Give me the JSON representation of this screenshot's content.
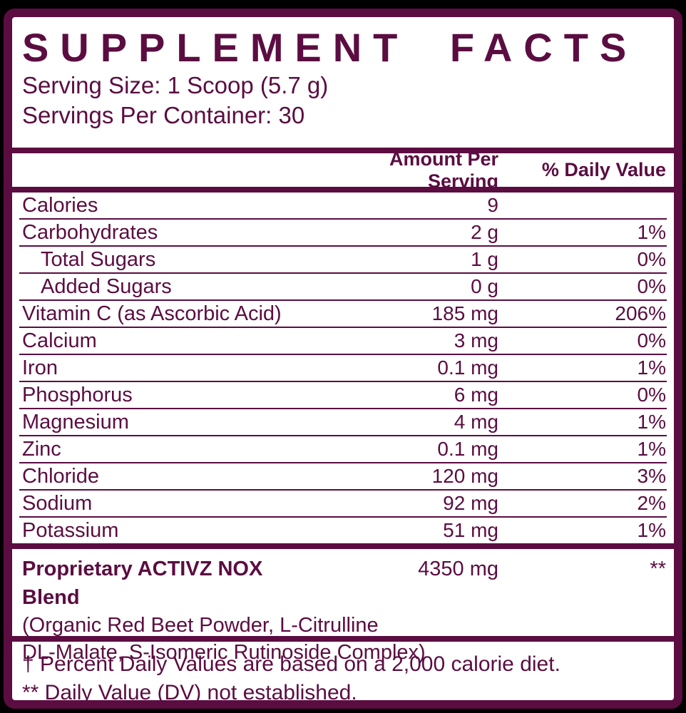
{
  "label": {
    "title": "SUPPLEMENT FACTS",
    "serving_size": "Serving Size: 1 Scoop (5.7 g)",
    "servings_per_container": "Servings Per Container: 30",
    "columns": {
      "amount": "Amount Per Serving",
      "daily_value": "% Daily Value"
    },
    "rows": [
      {
        "name": "Calories",
        "amount": "9",
        "dv": "",
        "indent": false
      },
      {
        "name": "Carbohydrates",
        "amount": "2 g",
        "dv": "1%",
        "indent": false
      },
      {
        "name": "Total Sugars",
        "amount": "1 g",
        "dv": "0%",
        "indent": true
      },
      {
        "name": "Added Sugars",
        "amount": "0 g",
        "dv": "0%",
        "indent": true
      },
      {
        "name": "Vitamin C (as Ascorbic Acid)",
        "amount": "185 mg",
        "dv": "206%",
        "indent": false
      },
      {
        "name": "Calcium",
        "amount": "3 mg",
        "dv": "0%",
        "indent": false
      },
      {
        "name": "Iron",
        "amount": "0.1 mg",
        "dv": "1%",
        "indent": false
      },
      {
        "name": "Phosphorus",
        "amount": "6 mg",
        "dv": "0%",
        "indent": false
      },
      {
        "name": "Magnesium",
        "amount": "4 mg",
        "dv": "1%",
        "indent": false
      },
      {
        "name": "Zinc",
        "amount": "0.1 mg",
        "dv": "1%",
        "indent": false
      },
      {
        "name": "Chloride",
        "amount": "120 mg",
        "dv": "3%",
        "indent": false
      },
      {
        "name": "Sodium",
        "amount": "92 mg",
        "dv": "2%",
        "indent": false
      },
      {
        "name": "Potassium",
        "amount": "51 mg",
        "dv": "1%",
        "indent": false
      }
    ],
    "blend": {
      "name": "Proprietary ACTIVZ NOX Blend",
      "amount": "4350 mg",
      "dv": "**",
      "ingredients_line1": "(Organic Red Beet Powder, L-Citrulline",
      "ingredients_line2": "DL-Malate, S-Isomeric Rutinoside Complex)"
    },
    "footnotes": [
      "† Percent Daily Values are based on a 2,000 calorie diet.",
      "** Daily Value (DV) not established."
    ],
    "colors": {
      "plum": "#5b0d41",
      "background": "#000000",
      "panel": "#ffffff"
    }
  }
}
